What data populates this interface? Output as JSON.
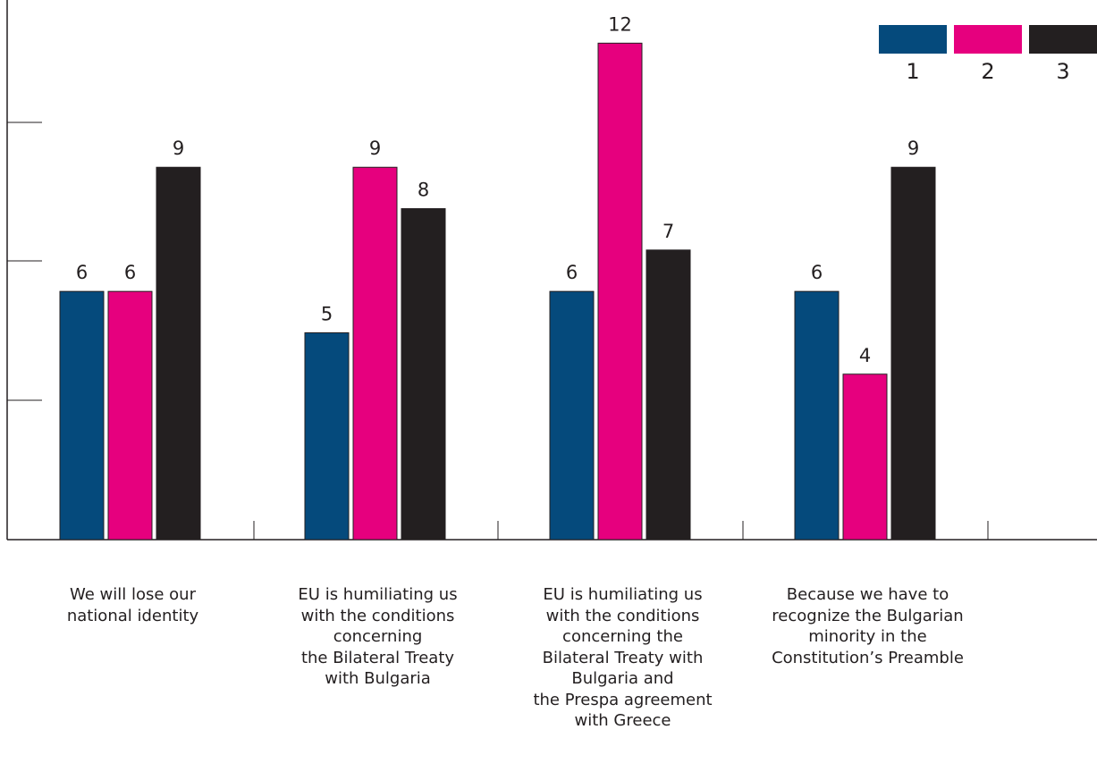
{
  "chart_data": {
    "type": "bar",
    "categories": [
      "We will lose our\nnational identity",
      "EU is humiliating us\nwith the conditions\nconcerning\nthe Bilateral Treaty\nwith Bulgaria",
      "EU is humiliating us\nwith the conditions\nconcerning the\nBilateral Treaty with\nBulgaria and\nthe Prespa agreement\nwith Greece",
      "Because we have to\nrecognize the Bulgarian\nminority in the\nConstitution’s Preamble"
    ],
    "series": [
      {
        "name": "1",
        "color": "#054a7c",
        "values": [
          6,
          5,
          6,
          6
        ]
      },
      {
        "name": "2",
        "color": "#e6007e",
        "values": [
          6,
          9,
          12,
          4
        ]
      },
      {
        "name": "3",
        "color": "#231f20",
        "values": [
          9,
          8,
          7,
          9
        ]
      }
    ],
    "ylim": [
      0,
      13
    ]
  }
}
